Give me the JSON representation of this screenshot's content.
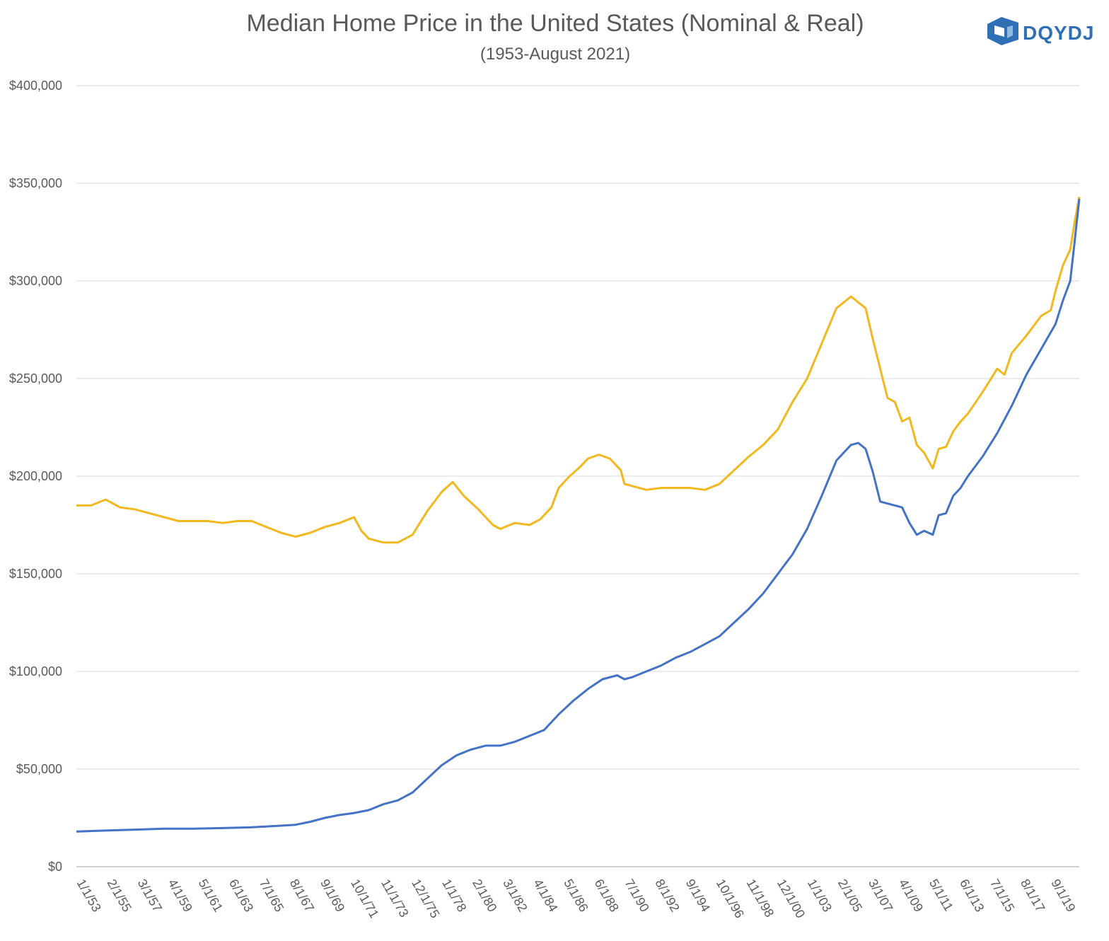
{
  "brand": {
    "name": "DQYDJ",
    "logo_icon": "dqydj-logo-icon",
    "color": "#2f6fb3"
  },
  "chart_data": {
    "type": "line",
    "title": "Median Home Price in the United States (Nominal & Real)",
    "subtitle": "(1953-August 2021)",
    "xlabel": "",
    "ylabel": "",
    "ylim": [
      0,
      400000
    ],
    "grid": true,
    "legend": "none",
    "y_ticks": [
      0,
      50000,
      100000,
      150000,
      200000,
      250000,
      300000,
      350000,
      400000
    ],
    "y_tick_labels": [
      "$0",
      "$50,000",
      "$100,000",
      "$150,000",
      "$200,000",
      "$250,000",
      "$300,000",
      "$350,000",
      "$400,000"
    ],
    "x_range": [
      1953.0,
      2021.62
    ],
    "x_ticks": [
      1953.0,
      1955.08,
      1957.17,
      1959.25,
      1961.33,
      1963.42,
      1965.5,
      1967.58,
      1969.67,
      1971.75,
      1973.83,
      1975.92,
      1978.0,
      1980.08,
      1982.17,
      1984.25,
      1986.33,
      1988.42,
      1990.5,
      1992.58,
      1994.67,
      1996.75,
      1998.83,
      2000.92,
      2003.0,
      2005.08,
      2007.17,
      2009.25,
      2011.33,
      2013.42,
      2015.5,
      2017.58,
      2019.67
    ],
    "x_tick_labels": [
      "1/1/53",
      "2/1/55",
      "3/1/57",
      "4/1/59",
      "5/1/61",
      "6/1/63",
      "7/1/65",
      "8/1/67",
      "9/1/69",
      "10/1/71",
      "11/1/73",
      "12/1/75",
      "1/1/78",
      "2/1/80",
      "3/1/82",
      "4/1/84",
      "5/1/86",
      "6/1/88",
      "7/1/90",
      "8/1/92",
      "9/1/94",
      "10/1/96",
      "11/1/98",
      "12/1/00",
      "1/1/03",
      "2/1/05",
      "3/1/07",
      "4/1/09",
      "5/1/11",
      "6/1/13",
      "7/1/15",
      "8/1/17",
      "9/1/19"
    ],
    "series": [
      {
        "color": "#f2b81f",
        "points": [
          [
            1953.0,
            185000
          ],
          [
            1954.0,
            185000
          ],
          [
            1955.0,
            188000
          ],
          [
            1956.0,
            184000
          ],
          [
            1957.0,
            183000
          ],
          [
            1958.0,
            181000
          ],
          [
            1959.0,
            179000
          ],
          [
            1960.0,
            177000
          ],
          [
            1961.0,
            177000
          ],
          [
            1962.0,
            177000
          ],
          [
            1963.0,
            176000
          ],
          [
            1964.0,
            177000
          ],
          [
            1965.0,
            177000
          ],
          [
            1966.0,
            174000
          ],
          [
            1967.0,
            171000
          ],
          [
            1968.0,
            169000
          ],
          [
            1969.0,
            171000
          ],
          [
            1970.0,
            174000
          ],
          [
            1971.0,
            176000
          ],
          [
            1972.0,
            179000
          ],
          [
            1972.5,
            172000
          ],
          [
            1973.0,
            168000
          ],
          [
            1974.0,
            166000
          ],
          [
            1975.0,
            166000
          ],
          [
            1976.0,
            170000
          ],
          [
            1977.0,
            182000
          ],
          [
            1978.0,
            192000
          ],
          [
            1978.75,
            197000
          ],
          [
            1979.5,
            190000
          ],
          [
            1980.5,
            183000
          ],
          [
            1981.5,
            175000
          ],
          [
            1982.0,
            173000
          ],
          [
            1983.0,
            176000
          ],
          [
            1984.0,
            175000
          ],
          [
            1984.75,
            178000
          ],
          [
            1985.5,
            184000
          ],
          [
            1986.0,
            194000
          ],
          [
            1986.75,
            200000
          ],
          [
            1987.5,
            205000
          ],
          [
            1988.0,
            209000
          ],
          [
            1988.75,
            211000
          ],
          [
            1989.5,
            209000
          ],
          [
            1990.25,
            203000
          ],
          [
            1990.5,
            196000
          ],
          [
            1991.0,
            195000
          ],
          [
            1992.0,
            193000
          ],
          [
            1993.0,
            194000
          ],
          [
            1994.0,
            194000
          ],
          [
            1995.0,
            194000
          ],
          [
            1996.0,
            193000
          ],
          [
            1997.0,
            196000
          ],
          [
            1998.0,
            203000
          ],
          [
            1999.0,
            210000
          ],
          [
            2000.0,
            216000
          ],
          [
            2001.0,
            224000
          ],
          [
            2002.0,
            238000
          ],
          [
            2003.0,
            250000
          ],
          [
            2004.0,
            268000
          ],
          [
            2005.0,
            286000
          ],
          [
            2005.5,
            289000
          ],
          [
            2006.0,
            292000
          ],
          [
            2007.0,
            286000
          ],
          [
            2007.5,
            270000
          ],
          [
            2008.0,
            255000
          ],
          [
            2008.5,
            240000
          ],
          [
            2009.0,
            238000
          ],
          [
            2009.5,
            228000
          ],
          [
            2010.0,
            230000
          ],
          [
            2010.5,
            216000
          ],
          [
            2011.0,
            212000
          ],
          [
            2011.6,
            204000
          ],
          [
            2012.0,
            214000
          ],
          [
            2012.5,
            215000
          ],
          [
            2013.0,
            223000
          ],
          [
            2013.5,
            228000
          ],
          [
            2014.0,
            232000
          ],
          [
            2015.0,
            243000
          ],
          [
            2016.0,
            255000
          ],
          [
            2016.5,
            252000
          ],
          [
            2017.0,
            263000
          ],
          [
            2018.0,
            272000
          ],
          [
            2019.0,
            282000
          ],
          [
            2019.67,
            285000
          ],
          [
            2020.0,
            295000
          ],
          [
            2020.5,
            308000
          ],
          [
            2021.0,
            316000
          ],
          [
            2021.3,
            330000
          ],
          [
            2021.62,
            343000
          ]
        ]
      },
      {
        "color": "#4472c4",
        "points": [
          [
            1953.0,
            18000
          ],
          [
            1955.0,
            18500
          ],
          [
            1957.0,
            19000
          ],
          [
            1959.0,
            19500
          ],
          [
            1961.0,
            19500
          ],
          [
            1963.0,
            19800
          ],
          [
            1965.0,
            20200
          ],
          [
            1967.0,
            21000
          ],
          [
            1968.0,
            21500
          ],
          [
            1969.0,
            23000
          ],
          [
            1970.0,
            25000
          ],
          [
            1971.0,
            26500
          ],
          [
            1972.0,
            27500
          ],
          [
            1973.0,
            29000
          ],
          [
            1974.0,
            32000
          ],
          [
            1975.0,
            34000
          ],
          [
            1976.0,
            38000
          ],
          [
            1977.0,
            45000
          ],
          [
            1978.0,
            52000
          ],
          [
            1979.0,
            57000
          ],
          [
            1980.0,
            60000
          ],
          [
            1981.0,
            62000
          ],
          [
            1982.0,
            62000
          ],
          [
            1983.0,
            64000
          ],
          [
            1984.0,
            67000
          ],
          [
            1985.0,
            70000
          ],
          [
            1986.0,
            78000
          ],
          [
            1987.0,
            85000
          ],
          [
            1988.0,
            91000
          ],
          [
            1989.0,
            96000
          ],
          [
            1990.0,
            98000
          ],
          [
            1990.5,
            96000
          ],
          [
            1991.0,
            97000
          ],
          [
            1992.0,
            100000
          ],
          [
            1993.0,
            103000
          ],
          [
            1994.0,
            107000
          ],
          [
            1995.0,
            110000
          ],
          [
            1996.0,
            114000
          ],
          [
            1997.0,
            118000
          ],
          [
            1998.0,
            125000
          ],
          [
            1999.0,
            132000
          ],
          [
            2000.0,
            140000
          ],
          [
            2001.0,
            150000
          ],
          [
            2002.0,
            160000
          ],
          [
            2003.0,
            173000
          ],
          [
            2004.0,
            190000
          ],
          [
            2005.0,
            208000
          ],
          [
            2006.0,
            216000
          ],
          [
            2006.5,
            217000
          ],
          [
            2007.0,
            214000
          ],
          [
            2007.5,
            202000
          ],
          [
            2008.0,
            187000
          ],
          [
            2009.0,
            185000
          ],
          [
            2009.5,
            184000
          ],
          [
            2010.0,
            176000
          ],
          [
            2010.5,
            170000
          ],
          [
            2011.0,
            172000
          ],
          [
            2011.6,
            170000
          ],
          [
            2012.0,
            180000
          ],
          [
            2012.5,
            181000
          ],
          [
            2013.0,
            190000
          ],
          [
            2013.5,
            194000
          ],
          [
            2014.0,
            200000
          ],
          [
            2015.0,
            210000
          ],
          [
            2016.0,
            222000
          ],
          [
            2017.0,
            236000
          ],
          [
            2018.0,
            252000
          ],
          [
            2019.0,
            265000
          ],
          [
            2020.0,
            278000
          ],
          [
            2020.5,
            290000
          ],
          [
            2021.0,
            300000
          ],
          [
            2021.3,
            320000
          ],
          [
            2021.62,
            342000
          ]
        ]
      }
    ]
  }
}
